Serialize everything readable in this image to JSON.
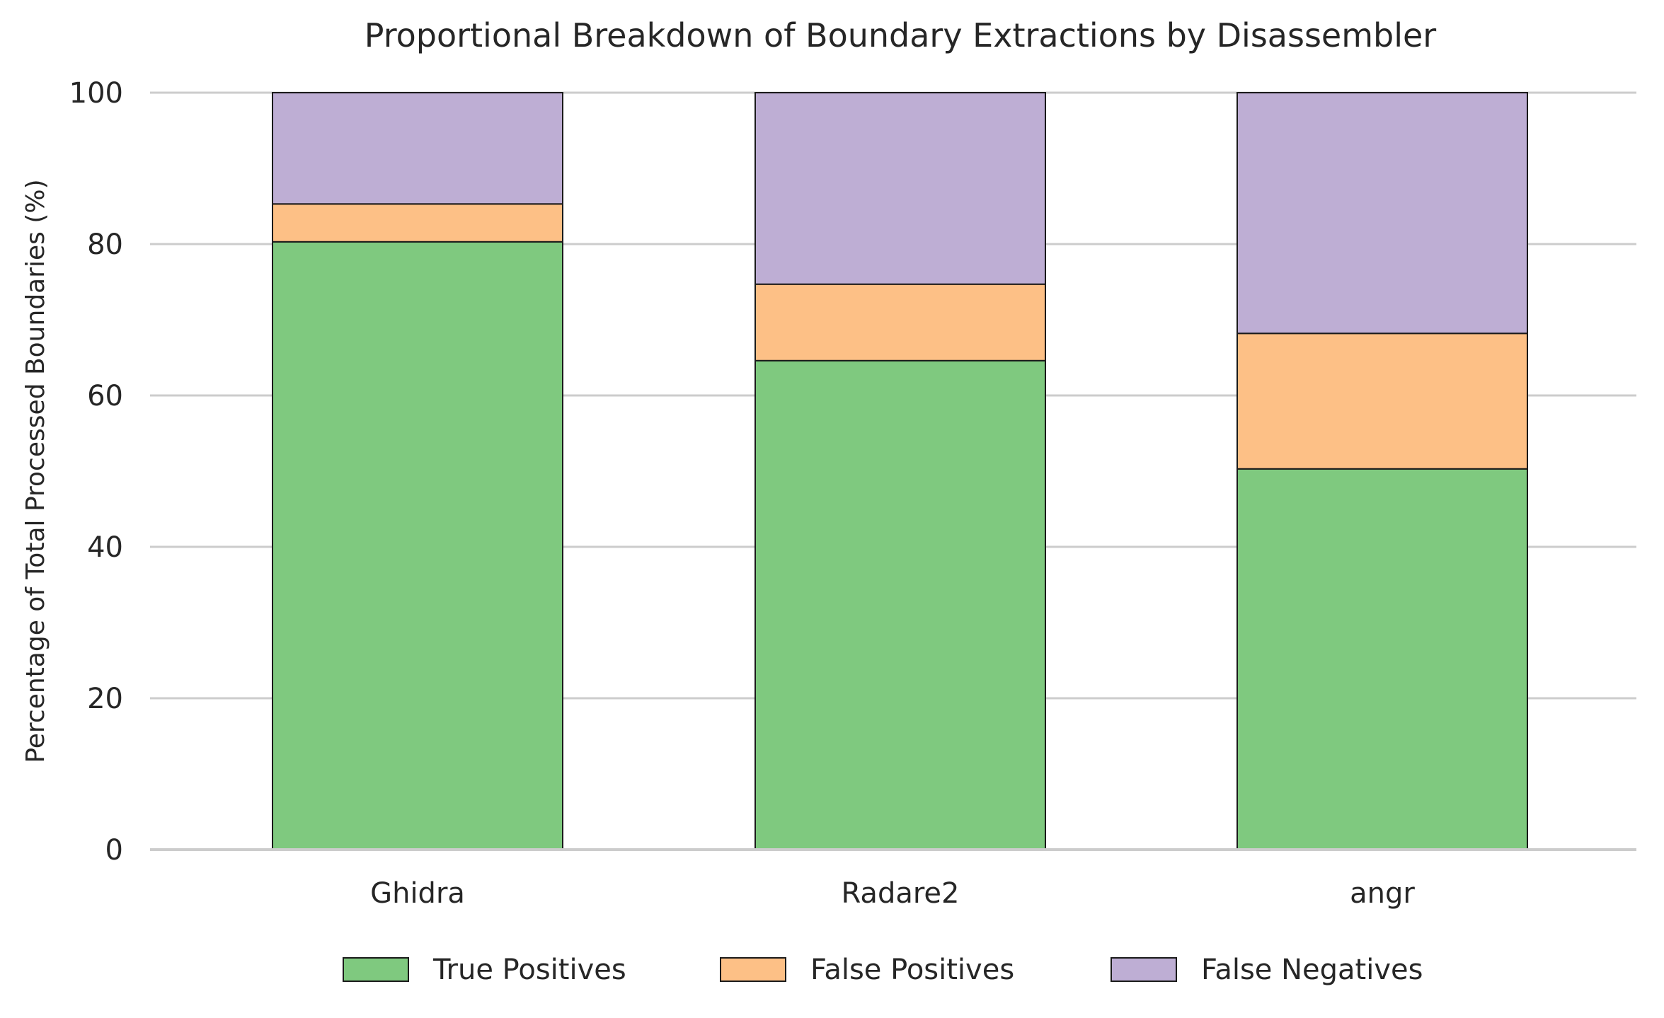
{
  "chart_data": {
    "type": "bar",
    "stacked": true,
    "title": "Proportional Breakdown of Boundary Extractions by Disassembler",
    "xlabel": "",
    "ylabel": "Percentage of Total Processed Boundaries (%)",
    "ylim": [
      0,
      100
    ],
    "yticks": [
      "0",
      "20",
      "40",
      "60",
      "80",
      "100"
    ],
    "grid": "horizontal",
    "legend_position": "bottom-center",
    "categories": [
      "Ghidra",
      "Radare2",
      "angr"
    ],
    "series": [
      {
        "name": "True Positives",
        "values": [
          80.3,
          64.6,
          50.3
        ],
        "color": "#7fc97f"
      },
      {
        "name": "False Positives",
        "values": [
          5.0,
          10.1,
          17.9
        ],
        "color": "#fdc086"
      },
      {
        "name": "False Negatives",
        "values": [
          14.7,
          25.3,
          31.8
        ],
        "color": "#beaed4"
      }
    ]
  }
}
